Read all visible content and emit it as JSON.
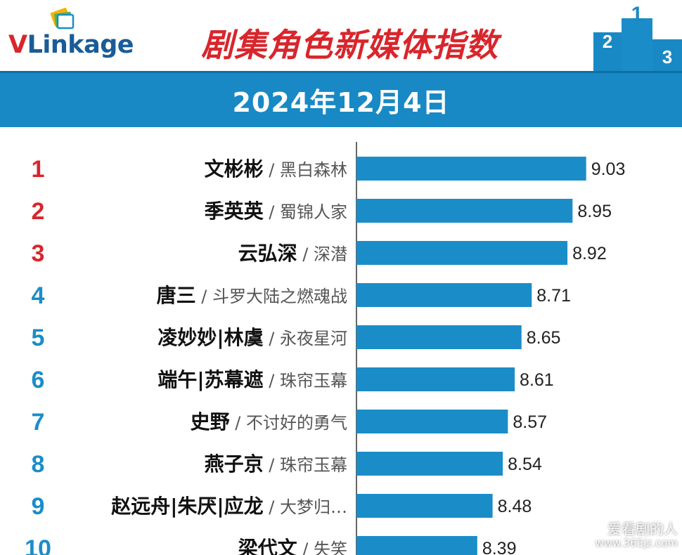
{
  "header": {
    "logo_text_v": "V",
    "logo_text_rest": "Linkage",
    "title": "剧集角色新媒体指数",
    "podium_labels": [
      "2",
      "1",
      "3"
    ]
  },
  "banner": {
    "date": "2024年12月4日"
  },
  "colors": {
    "bar": "#1a8dc8",
    "rank_top3": "#d8262c",
    "rank_rest": "#1a8dc8",
    "banner": "#1889c4",
    "title": "#d8262c"
  },
  "chart_data": {
    "type": "bar",
    "orientation": "horizontal",
    "title": "剧集角色新媒体指数",
    "date": "2024年12月4日",
    "categories": [
      "1",
      "2",
      "3",
      "4",
      "5",
      "6",
      "7",
      "8",
      "9",
      "10"
    ],
    "roles": [
      "文彬彬",
      "季英英",
      "云弘深",
      "唐三",
      "凌妙妙|林虞",
      "端午|苏幕遮",
      "史野",
      "燕子京",
      "赵远舟|朱厌|应龙",
      "梁代文"
    ],
    "shows": [
      "黑白森林",
      "蜀锦人家",
      "深潜",
      "斗罗大陆之燃魂战",
      "永夜星河",
      "珠帘玉幕",
      "不讨好的勇气",
      "珠帘玉幕",
      "大梦归…",
      "失笑"
    ],
    "values": [
      9.03,
      8.95,
      8.92,
      8.71,
      8.65,
      8.61,
      8.57,
      8.54,
      8.48,
      8.39
    ],
    "value_labels": [
      "9.03",
      "8.95",
      "8.92",
      "8.71",
      "8.65",
      "8.61",
      "8.57",
      "8.54",
      "8.48",
      "8.39"
    ],
    "separator": "/",
    "grid": false
  },
  "watermark": {
    "line1": "爱看剧的人",
    "line2": "www.365jz.com"
  }
}
